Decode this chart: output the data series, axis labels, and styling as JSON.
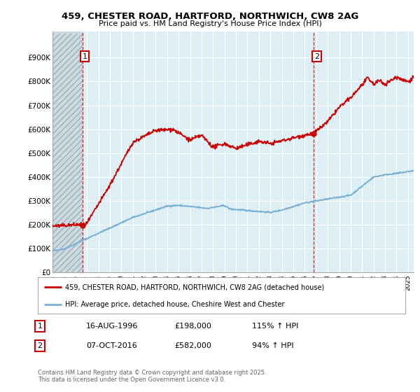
{
  "title_line1": "459, CHESTER ROAD, HARTFORD, NORTHWICH, CW8 2AG",
  "title_line2": "Price paid vs. HM Land Registry's House Price Index (HPI)",
  "xlim_start": 1994.0,
  "xlim_end": 2025.5,
  "ylim_min": 0,
  "ylim_max": 1000000,
  "yticks": [
    0,
    100000,
    200000,
    300000,
    400000,
    500000,
    600000,
    700000,
    800000,
    900000
  ],
  "ytick_labels": [
    "£0",
    "£100K",
    "£200K",
    "£300K",
    "£400K",
    "£500K",
    "£600K",
    "£700K",
    "£800K",
    "£900K"
  ],
  "xticks": [
    1994,
    1995,
    1996,
    1997,
    1998,
    1999,
    2000,
    2001,
    2002,
    2003,
    2004,
    2005,
    2006,
    2007,
    2008,
    2009,
    2010,
    2011,
    2012,
    2013,
    2014,
    2015,
    2016,
    2017,
    2018,
    2019,
    2020,
    2021,
    2022,
    2023,
    2024,
    2025
  ],
  "background_color": "#ffffff",
  "plot_bg_color": "#ddeef5",
  "grid_color": "#ffffff",
  "red_line_color": "#cc0000",
  "blue_line_color": "#7ab0d4",
  "sale1_x": 1996.617,
  "sale1_y": 198000,
  "sale2_x": 2016.764,
  "sale2_y": 582000,
  "hatch_color": "#c0ccd4",
  "hatch_line_color": "#a0b0b8",
  "dashed_line_color": "#cc0000",
  "legend_label_red": "459, CHESTER ROAD, HARTFORD, NORTHWICH, CW8 2AG (detached house)",
  "legend_label_blue": "HPI: Average price, detached house, Cheshire West and Chester",
  "note1_label": "1",
  "note1_date": "16-AUG-1996",
  "note1_price": "£198,000",
  "note1_hpi": "115% ↑ HPI",
  "note2_label": "2",
  "note2_date": "07-OCT-2016",
  "note2_price": "£582,000",
  "note2_hpi": "94% ↑ HPI",
  "copyright_text": "Contains HM Land Registry data © Crown copyright and database right 2025.\nThis data is licensed under the Open Government Licence v3.0."
}
